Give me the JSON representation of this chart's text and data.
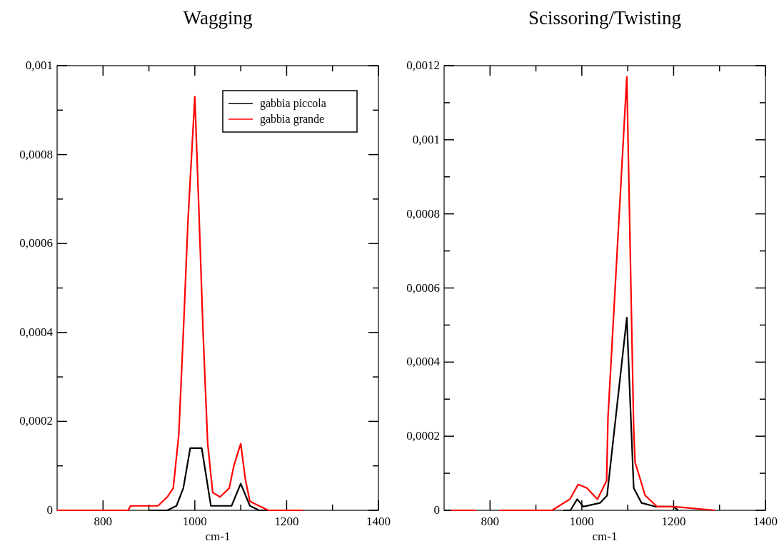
{
  "chart_data": [
    {
      "type": "line",
      "title": "Wagging",
      "xlabel": "cm-1",
      "legend": "top right",
      "xlim": [
        700,
        1400
      ],
      "ylim": [
        0,
        0.001
      ],
      "xticks": [
        800,
        {
          "value": 900,
          "label": null
        },
        1000,
        {
          "value": 1100,
          "label": null
        },
        1200,
        {
          "value": 1300,
          "label": null
        },
        1400
      ],
      "yticks": [
        0,
        {
          "value": 0.0001,
          "label": null
        },
        {
          "value": 0.0002,
          "label": "0,0002"
        },
        {
          "value": 0.0003,
          "label": null
        },
        {
          "value": 0.0004,
          "label": "0,0004"
        },
        {
          "value": 0.0005,
          "label": null
        },
        {
          "value": 0.0006,
          "label": "0,0006"
        },
        {
          "value": 0.0007,
          "label": null
        },
        {
          "value": 0.0008,
          "label": "0,0008"
        },
        {
          "value": 0.0009,
          "label": null
        },
        {
          "value": 0.001,
          "label": "0,001"
        }
      ],
      "series": [
        {
          "name": "gabbia piccola",
          "color": "#000000",
          "x": [
            900,
            940,
            960,
            975,
            990,
            1015,
            1035,
            1060,
            1080,
            1100,
            1120,
            1140,
            1160
          ],
          "values": [
            0,
            0,
            1e-05,
            5e-05,
            0.00014,
            0.00014,
            1e-05,
            1e-05,
            1e-05,
            6e-05,
            1e-05,
            0,
            0
          ]
        },
        {
          "name": "gabbia grande",
          "color": "#ff0000",
          "x": [
            700,
            855,
            860,
            900,
            920,
            940,
            953,
            965,
            975,
            985,
            1000,
            1008,
            1018,
            1028,
            1039,
            1055,
            1075,
            1085,
            1100,
            1110,
            1120,
            1140,
            1160,
            1235
          ],
          "values": [
            0,
            0,
            1e-05,
            1e-05,
            1e-05,
            3e-05,
            5e-05,
            0.00017,
            0.0004,
            0.00065,
            0.00093,
            0.0007,
            0.0004,
            0.00015,
            4e-05,
            3e-05,
            5e-05,
            0.0001,
            0.00015,
            7e-05,
            2e-05,
            1e-05,
            0,
            0
          ]
        }
      ]
    },
    {
      "type": "line",
      "title": "Scissoring/Twisting",
      "xlabel": "cm-1",
      "xlim": [
        700,
        1400
      ],
      "ylim": [
        0,
        0.0012
      ],
      "xticks": [
        800,
        {
          "value": 900,
          "label": null
        },
        1000,
        {
          "value": 1100,
          "label": null
        },
        1200,
        {
          "value": 1300,
          "label": null
        },
        1400
      ],
      "yticks": [
        0,
        {
          "value": 0.0001,
          "label": null
        },
        {
          "value": 0.0002,
          "label": "0,0002"
        },
        {
          "value": 0.0003,
          "label": null
        },
        {
          "value": 0.0004,
          "label": "0,0004"
        },
        {
          "value": 0.0005,
          "label": null
        },
        {
          "value": 0.0006,
          "label": "0,0006"
        },
        {
          "value": 0.0007,
          "label": null
        },
        {
          "value": 0.0008,
          "label": "0,0008"
        },
        {
          "value": 0.0009,
          "label": null
        },
        {
          "value": 0.001,
          "label": "0,001"
        },
        {
          "value": 0.0011,
          "label": null
        },
        {
          "value": 0.0012,
          "label": "0,0012"
        }
      ],
      "series": [
        {
          "color": "#000000",
          "x": [
            960,
            975,
            990,
            1003,
            1040,
            1055,
            1098,
            1113,
            1130,
            1160,
            1200,
            1210
          ],
          "values": [
            0,
            0,
            3e-05,
            1e-05,
            2e-05,
            4e-05,
            0.00052,
            6e-05,
            2e-05,
            1e-05,
            1e-05,
            0
          ]
        },
        {
          "color": "#ff0000",
          "x": [
            715,
            770,
            790,
            820,
            840,
            935,
            974,
            992,
            1011,
            1034,
            1054,
            1057,
            1098,
            1113,
            1116,
            1138,
            1164,
            1200,
            1290
          ],
          "values": [
            0,
            0,
            null,
            0,
            0,
            0,
            3e-05,
            7e-05,
            6e-05,
            3e-05,
            8e-05,
            0.00025,
            0.00117,
            0.00022,
            0.00013,
            4e-05,
            1e-05,
            1e-05,
            0
          ]
        }
      ]
    }
  ]
}
